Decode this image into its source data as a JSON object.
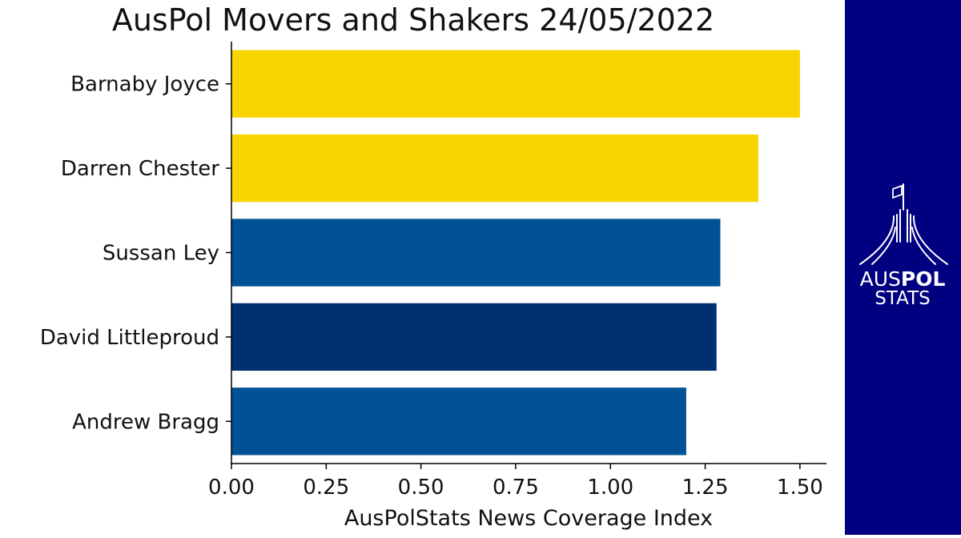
{
  "chart_data": {
    "type": "bar",
    "orientation": "horizontal",
    "title": "AusPol Movers and Shakers 24/05/2022",
    "xlabel": "AusPolStats News Coverage Index",
    "ylabel": "",
    "categories": [
      "Barnaby Joyce",
      "Darren Chester",
      "Sussan Ley",
      "David Littleproud",
      "Andrew Bragg"
    ],
    "values": [
      1.5,
      1.39,
      1.29,
      1.28,
      1.2
    ],
    "bar_colors": [
      "#F8D400",
      "#F8D400",
      "#005196",
      "#003070",
      "#005196"
    ],
    "xlim": [
      0,
      1.57
    ],
    "xticks": [
      0.0,
      0.25,
      0.5,
      0.75,
      1.0,
      1.25,
      1.5
    ],
    "xtick_labels": [
      "0.00",
      "0.25",
      "0.50",
      "0.75",
      "1.00",
      "1.25",
      "1.50"
    ],
    "grid": false
  },
  "logo": {
    "line1_light": "AUS",
    "line1_bold": "POL",
    "line2": "STATS",
    "background": "#000080",
    "foreground": "#FFFFFF",
    "icon": "parliament-house-flag-icon"
  }
}
